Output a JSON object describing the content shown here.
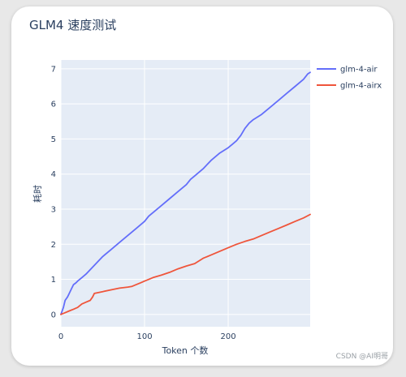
{
  "watermark": "CSDN @AI明哥",
  "chart_data": {
    "type": "line",
    "title": "GLM4 速度测试",
    "xlabel": "Token 个数",
    "ylabel": "耗时",
    "xlim": [
      0,
      298
    ],
    "ylim": [
      -0.35,
      7.25
    ],
    "x_ticks": [
      0,
      100,
      200
    ],
    "y_ticks": [
      0,
      1,
      2,
      3,
      4,
      5,
      6,
      7
    ],
    "grid": true,
    "legend_position": "right",
    "colors": {
      "plot_background": "#e5ecf6",
      "grid": "#ffffff"
    },
    "series": [
      {
        "name": "glm-4-air",
        "color": "#636efa",
        "x": [
          0,
          3,
          5,
          8,
          10,
          13,
          15,
          18,
          20,
          25,
          30,
          40,
          50,
          60,
          70,
          80,
          90,
          100,
          105,
          110,
          120,
          130,
          140,
          150,
          155,
          160,
          170,
          180,
          190,
          200,
          205,
          210,
          215,
          220,
          225,
          230,
          240,
          250,
          260,
          270,
          280,
          290,
          295,
          298
        ],
        "y": [
          0,
          0.2,
          0.4,
          0.5,
          0.6,
          0.75,
          0.85,
          0.9,
          0.95,
          1.05,
          1.15,
          1.4,
          1.65,
          1.85,
          2.05,
          2.25,
          2.45,
          2.65,
          2.8,
          2.9,
          3.1,
          3.3,
          3.5,
          3.7,
          3.85,
          3.95,
          4.15,
          4.4,
          4.6,
          4.75,
          4.85,
          4.95,
          5.1,
          5.3,
          5.45,
          5.55,
          5.7,
          5.9,
          6.1,
          6.3,
          6.5,
          6.7,
          6.85,
          6.9
        ]
      },
      {
        "name": "glm-4-airx",
        "color": "#ef553b",
        "x": [
          0,
          5,
          10,
          15,
          20,
          25,
          30,
          35,
          38,
          40,
          50,
          60,
          70,
          80,
          85,
          90,
          95,
          100,
          105,
          110,
          120,
          130,
          140,
          150,
          160,
          170,
          180,
          190,
          200,
          210,
          220,
          230,
          240,
          250,
          260,
          270,
          280,
          290,
          298
        ],
        "y": [
          0,
          0.05,
          0.1,
          0.15,
          0.2,
          0.3,
          0.35,
          0.4,
          0.5,
          0.6,
          0.65,
          0.7,
          0.75,
          0.78,
          0.8,
          0.85,
          0.9,
          0.95,
          1.0,
          1.05,
          1.12,
          1.2,
          1.3,
          1.38,
          1.45,
          1.6,
          1.7,
          1.8,
          1.9,
          2.0,
          2.08,
          2.15,
          2.25,
          2.35,
          2.45,
          2.55,
          2.65,
          2.75,
          2.85
        ]
      }
    ]
  }
}
